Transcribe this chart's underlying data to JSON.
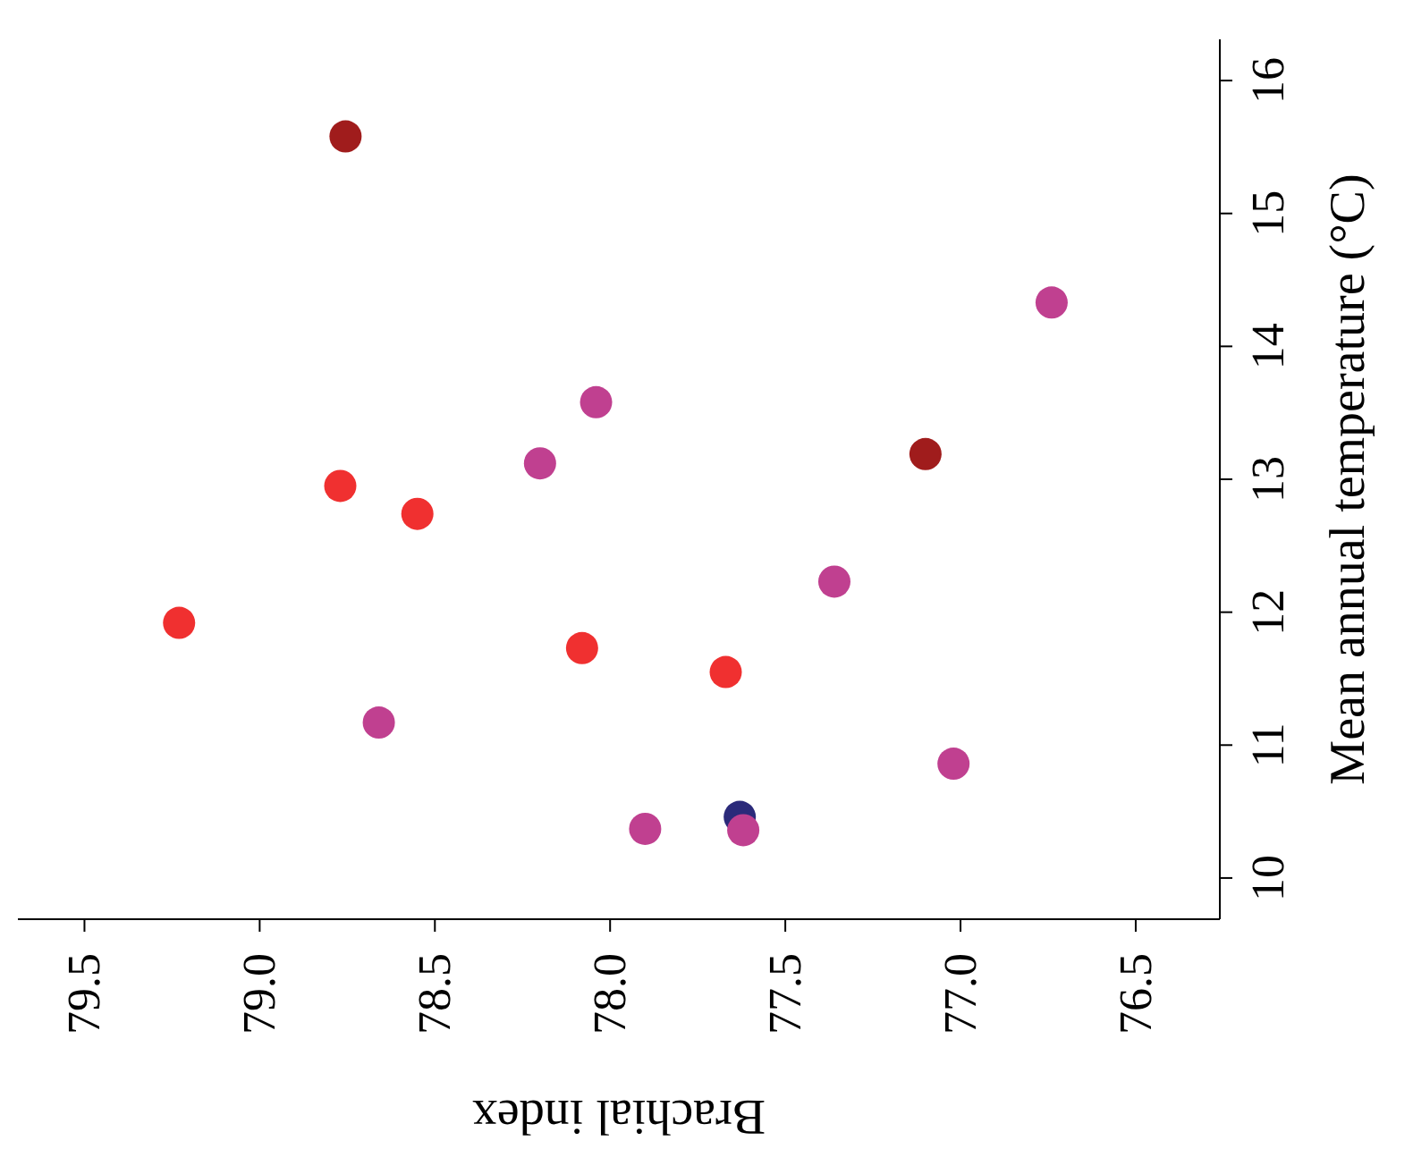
{
  "chart_data": {
    "type": "scatter",
    "xlabel": "Brachial index",
    "ylabel": "Mean annual temperature (°C)",
    "xlim": [
      79.69,
      76.26
    ],
    "ylim": [
      9.69,
      16.31
    ],
    "xticks": [
      79.5,
      {
        "value": 79,
        "label": "79.0"
      },
      78.5,
      {
        "value": 78,
        "label": "78.0"
      },
      77.5,
      {
        "value": 77,
        "label": "77.0"
      },
      76.5
    ],
    "yticks": [
      10,
      11,
      12,
      13,
      14,
      15,
      16
    ],
    "marker": "circle",
    "grid": false,
    "legend": false,
    "series": [
      {
        "color": "#a01c1c",
        "x": [
          78.755,
          77.1
        ],
        "values": [
          15.58,
          13.19
        ]
      },
      {
        "color": "#2b2a7a",
        "x": [
          77.63
        ],
        "values": [
          10.46
        ]
      },
      {
        "color": "#f03030",
        "x": [
          79.23,
          78.77,
          78.55,
          78.08,
          77.67
        ],
        "values": [
          11.92,
          12.95,
          12.74,
          11.73,
          11.55
        ]
      },
      {
        "color": "#c04090",
        "x": [
          78.66,
          78.2,
          78.04,
          77.9,
          77.62,
          77.36,
          77.02,
          76.74
        ],
        "values": [
          11.17,
          13.12,
          13.58,
          10.37,
          10.36,
          12.23,
          10.86,
          14.33
        ]
      }
    ]
  }
}
